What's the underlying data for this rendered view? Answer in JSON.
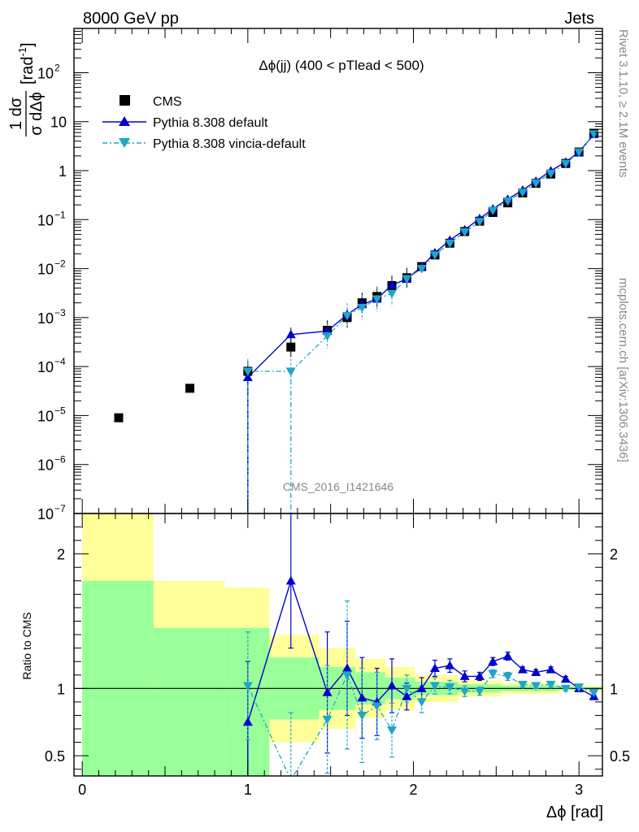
{
  "header": {
    "left": "8000 GeV pp",
    "right": "Jets"
  },
  "side_labels": {
    "rivet": "Rivet 3.1.10, ≥ 2.1M events",
    "mcplots": "mcplots.cern.ch [arXiv:1306.3436]"
  },
  "colors": {
    "pythia": "#0000cc",
    "vincia": "#1fa5c8",
    "band_inner": "#99ff99",
    "band_outer": "#ffff99"
  },
  "chart_data": {
    "type": "scatter",
    "title": "Δϕ(jj) (400 < pTlead <  500)",
    "watermark": "CMS_2016_I1421646",
    "xlabel": "Δϕ [rad]",
    "ylabel": "1/σ dσ/dΔϕ [rad⁻¹]",
    "ylabel_parts": {
      "num": "1 dσ",
      "den": "σ dΔϕ",
      "unit": "[rad",
      "unit_exp": "-1",
      "unit_close": "]"
    },
    "ratio_ylabel": "Ratio to CMS",
    "xlim": [
      -0.05,
      3.1416
    ],
    "main_yscale": "log",
    "main_ylim": [
      1e-07,
      800
    ],
    "ratio_ylim": [
      0.35,
      2.3
    ],
    "x_ticks": [
      {
        "v": 0,
        "label": "0"
      },
      {
        "v": 1,
        "label": "1"
      },
      {
        "v": 2,
        "label": "2"
      },
      {
        "v": 3,
        "label": "3"
      }
    ],
    "main_y_ticks": [
      {
        "exp": -7,
        "label": "10",
        "sup": "−7"
      },
      {
        "exp": -6,
        "label": "10",
        "sup": "−6"
      },
      {
        "exp": -5,
        "label": "10",
        "sup": "−5"
      },
      {
        "exp": -4,
        "label": "10",
        "sup": "−4"
      },
      {
        "exp": -3,
        "label": "10",
        "sup": "−3"
      },
      {
        "exp": -2,
        "label": "10",
        "sup": "−2"
      },
      {
        "exp": -1,
        "label": "10",
        "sup": "−1"
      },
      {
        "exp": 0,
        "label": "1",
        "sup": ""
      },
      {
        "exp": 1,
        "label": "10",
        "sup": ""
      },
      {
        "exp": 2,
        "label": "10",
        "sup": "2"
      }
    ],
    "ratio_y_ticks": [
      {
        "v": 0.5,
        "label": "0.5"
      },
      {
        "v": 1,
        "label": "1"
      },
      {
        "v": 2,
        "label": "2"
      }
    ],
    "legend": [
      "CMS",
      "Pythia 8.308 default",
      "Pythia 8.308 vincia-default"
    ],
    "legend_position": "top-left",
    "cms": {
      "name": "CMS",
      "x": [
        0.22,
        0.65,
        1.0,
        1.26,
        1.48,
        1.6,
        1.69,
        1.78,
        1.87,
        1.96,
        2.05,
        2.13,
        2.22,
        2.31,
        2.4,
        2.48,
        2.57,
        2.66,
        2.74,
        2.83,
        2.92,
        3.0,
        3.09
      ],
      "y": [
        9e-06,
        3.6e-05,
        8e-05,
        0.00025,
        0.00055,
        0.001,
        0.002,
        0.0027,
        0.0045,
        0.0065,
        0.011,
        0.019,
        0.033,
        0.057,
        0.093,
        0.14,
        0.22,
        0.35,
        0.55,
        0.85,
        1.4,
        2.4,
        5.8
      ]
    },
    "pythia": {
      "name": "Pythia 8.308 default",
      "x": [
        1.0,
        1.26,
        1.48,
        1.6,
        1.69,
        1.78,
        1.87,
        1.96,
        2.05,
        2.13,
        2.22,
        2.31,
        2.4,
        2.48,
        2.57,
        2.66,
        2.74,
        2.83,
        2.92,
        3.0,
        3.09
      ],
      "y": [
        6e-05,
        0.00045,
        0.00053,
        0.00115,
        0.00185,
        0.0024,
        0.0046,
        0.0061,
        0.011,
        0.021,
        0.038,
        0.062,
        0.105,
        0.165,
        0.26,
        0.4,
        0.61,
        0.99,
        1.5,
        2.4,
        5.5
      ],
      "y_start": 1e-07
    },
    "vincia": {
      "name": "Pythia 8.308 vincia-default",
      "x": [
        1.0,
        1.26,
        1.48,
        1.6,
        1.69,
        1.78,
        1.87,
        1.96,
        2.05,
        2.13,
        2.22,
        2.31,
        2.4,
        2.48,
        2.57,
        2.66,
        2.74,
        2.83,
        2.92,
        3.0,
        3.09
      ],
      "y": [
        8e-05,
        8e-05,
        0.00042,
        0.0011,
        0.0016,
        0.0024,
        0.0031,
        0.0062,
        0.01,
        0.019,
        0.033,
        0.056,
        0.091,
        0.154,
        0.24,
        0.36,
        0.56,
        0.88,
        1.4,
        2.4,
        5.6
      ],
      "y_start": 1e-07,
      "y_start_x": 1.26
    },
    "ratio": {
      "pythia": {
        "x": [
          1.0,
          1.26,
          1.48,
          1.6,
          1.69,
          1.78,
          1.87,
          1.96,
          2.05,
          2.13,
          2.22,
          2.31,
          2.4,
          2.48,
          2.57,
          2.66,
          2.74,
          2.83,
          2.92,
          3.0,
          3.09
        ],
        "y": [
          0.75,
          1.8,
          0.97,
          1.15,
          0.93,
          0.9,
          1.02,
          0.94,
          1.0,
          1.15,
          1.17,
          1.09,
          1.09,
          1.2,
          1.24,
          1.14,
          1.12,
          1.14,
          1.07,
          1.0,
          0.94
        ],
        "err": [
          0.45,
          0.5,
          0.45,
          0.35,
          0.3,
          0.25,
          0.2,
          0.1,
          0.08,
          0.06,
          0.05,
          0.04,
          0.03,
          0.03,
          0.03,
          0.02,
          0.02,
          0.02,
          0.02,
          0.01,
          0.01
        ]
      },
      "vincia": {
        "x": [
          1.0,
          1.26,
          1.48,
          1.6,
          1.69,
          1.78,
          1.87,
          1.96,
          2.05,
          2.13,
          2.22,
          2.31,
          2.4,
          2.48,
          2.57,
          2.66,
          2.74,
          2.83,
          2.92,
          3.0,
          3.09
        ],
        "y": [
          1.02,
          0.32,
          0.77,
          1.1,
          0.8,
          0.87,
          0.69,
          1.0,
          0.9,
          1.02,
          1.01,
          0.98,
          0.98,
          1.11,
          1.09,
          1.03,
          1.02,
          1.03,
          1.0,
          1.01,
          0.97
        ],
        "err": [
          0.4,
          0.5,
          0.4,
          0.55,
          0.35,
          0.25,
          0.2,
          0.1,
          0.08,
          0.06,
          0.05,
          0.04,
          0.03,
          0.03,
          0.03,
          0.02,
          0.02,
          0.02,
          0.02,
          0.01,
          0.01
        ]
      },
      "bands": [
        {
          "x0": 0.0,
          "x1": 0.43,
          "in_lo": 0.3,
          "in_hi": 1.8,
          "out_lo": 0.3,
          "out_hi": 2.5
        },
        {
          "x0": 0.43,
          "x1": 0.86,
          "in_lo": 0.3,
          "in_hi": 1.45,
          "out_lo": 0.66,
          "out_hi": 1.8
        },
        {
          "x0": 0.86,
          "x1": 1.13,
          "in_lo": 0.3,
          "in_hi": 1.45,
          "out_lo": 0.3,
          "out_hi": 1.75
        },
        {
          "x0": 1.13,
          "x1": 1.43,
          "in_lo": 0.77,
          "in_hi": 1.23,
          "out_lo": 0.6,
          "out_hi": 1.4
        },
        {
          "x0": 1.43,
          "x1": 1.65,
          "in_lo": 0.84,
          "in_hi": 1.16,
          "out_lo": 0.7,
          "out_hi": 1.3
        },
        {
          "x0": 1.65,
          "x1": 1.83,
          "in_lo": 0.88,
          "in_hi": 1.12,
          "out_lo": 0.78,
          "out_hi": 1.22
        },
        {
          "x0": 1.83,
          "x1": 2.01,
          "in_lo": 0.92,
          "in_hi": 1.08,
          "out_lo": 0.84,
          "out_hi": 1.16
        },
        {
          "x0": 2.01,
          "x1": 2.27,
          "in_lo": 0.95,
          "in_hi": 1.05,
          "out_lo": 0.9,
          "out_hi": 1.1
        },
        {
          "x0": 2.27,
          "x1": 2.53,
          "in_lo": 0.97,
          "in_hi": 1.03,
          "out_lo": 0.94,
          "out_hi": 1.06
        },
        {
          "x0": 2.53,
          "x1": 2.87,
          "in_lo": 0.98,
          "in_hi": 1.02,
          "out_lo": 0.96,
          "out_hi": 1.04
        },
        {
          "x0": 2.87,
          "x1": 3.1416,
          "in_lo": 0.99,
          "in_hi": 1.01,
          "out_lo": 0.98,
          "out_hi": 1.02
        }
      ]
    }
  }
}
